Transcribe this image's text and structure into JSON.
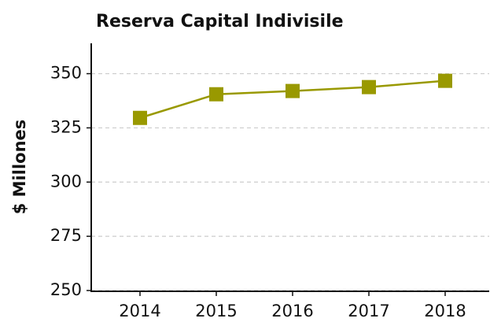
{
  "chart_data": {
    "type": "line",
    "title": "Reserva Capital Indivisile",
    "y_label": "$ Millones",
    "categories": [
      "2014",
      "2015",
      "2016",
      "2017",
      "2018"
    ],
    "values": [
      329.6,
      340.5,
      342,
      343.8,
      346.7
    ],
    "color": "#999900",
    "ylim": [
      250,
      364
    ],
    "yticks": [
      250,
      275,
      300,
      325,
      350
    ],
    "grid": true
  }
}
